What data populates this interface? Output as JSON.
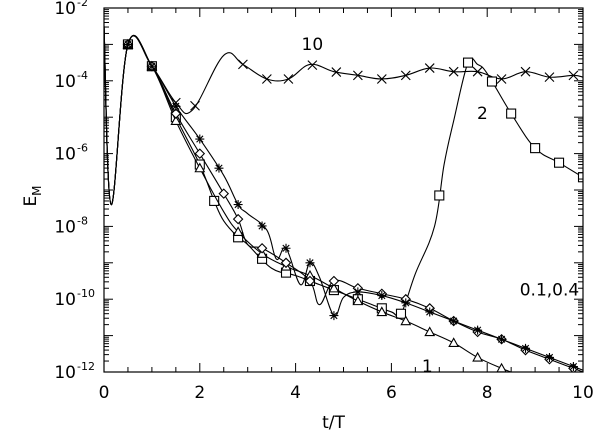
{
  "chart_data": {
    "type": "line",
    "title": "",
    "xlabel": "t/T",
    "ylabel": "E",
    "ylabel_subscript": "M",
    "xlim": [
      0,
      10
    ],
    "ylim_log10": [
      -12,
      -2
    ],
    "yscale": "log",
    "x_ticks": [
      0,
      2,
      4,
      6,
      8,
      10
    ],
    "y_ticks": [
      {
        "base": "10",
        "exp": "-12",
        "log": -12
      },
      {
        "base": "10",
        "exp": "-10",
        "log": -10
      },
      {
        "base": "10",
        "exp": "-8",
        "log": -8
      },
      {
        "base": "10",
        "exp": "-6",
        "log": -6
      },
      {
        "base": "10",
        "exp": "-4",
        "log": -4
      },
      {
        "base": "10",
        "exp": "-2",
        "log": -2
      }
    ],
    "annotations": [
      {
        "text": "10",
        "x": 4.35,
        "log_y": -3.15
      },
      {
        "text": "2",
        "x": 7.9,
        "log_y": -5.05
      },
      {
        "text": "0.1,0.4",
        "x": 9.3,
        "log_y": -9.9
      },
      {
        "text": "1",
        "x": 6.75,
        "log_y": -12.0
      }
    ],
    "series": [
      {
        "marker": "cross",
        "log_y": [
          [
            0,
            -2.5
          ],
          [
            0.15,
            -7.4
          ],
          [
            0.5,
            -3.0
          ],
          [
            1.0,
            -3.6
          ],
          [
            1.5,
            -4.6
          ],
          [
            1.85,
            -4.8
          ],
          [
            2.5,
            -3.3
          ],
          [
            2.9,
            -3.55
          ],
          [
            3.4,
            -3.95
          ],
          [
            3.85,
            -3.95
          ],
          [
            4.3,
            -3.55
          ],
          [
            4.8,
            -3.75
          ],
          [
            5.3,
            -3.85
          ],
          [
            5.8,
            -3.95
          ],
          [
            6.3,
            -3.85
          ],
          [
            6.8,
            -3.65
          ],
          [
            7.3,
            -3.75
          ],
          [
            7.8,
            -3.75
          ],
          [
            8.3,
            -3.95
          ],
          [
            8.8,
            -3.75
          ],
          [
            9.3,
            -3.9
          ],
          [
            9.8,
            -3.85
          ],
          [
            10.0,
            -3.9
          ]
        ],
        "markers_x": [
          0.5,
          1.0,
          1.5,
          1.9,
          2.9,
          3.4,
          3.85,
          4.35,
          4.85,
          5.3,
          5.8,
          6.3,
          6.8,
          7.3,
          7.8,
          8.3,
          8.8,
          9.3,
          9.8
        ]
      },
      {
        "marker": "square",
        "log_y": [
          [
            0,
            -2.5
          ],
          [
            0.15,
            -7.4
          ],
          [
            0.5,
            -3.0
          ],
          [
            1.0,
            -3.6
          ],
          [
            1.5,
            -5.0
          ],
          [
            2.0,
            -6.3
          ],
          [
            2.3,
            -7.3
          ],
          [
            2.5,
            -7.85
          ],
          [
            2.8,
            -8.3
          ],
          [
            3.0,
            -8.5
          ],
          [
            3.5,
            -9.15
          ],
          [
            4.0,
            -9.35
          ],
          [
            4.5,
            -9.6
          ],
          [
            5.0,
            -9.85
          ],
          [
            5.5,
            -10.1
          ],
          [
            6.0,
            -10.35
          ],
          [
            6.2,
            -10.4
          ],
          [
            6.5,
            -9.3
          ],
          [
            6.9,
            -8.0
          ],
          [
            7.1,
            -6.3
          ],
          [
            7.3,
            -5.1
          ],
          [
            7.6,
            -3.5
          ],
          [
            7.8,
            -3.55
          ],
          [
            8.0,
            -3.8
          ],
          [
            8.5,
            -4.9
          ],
          [
            9.0,
            -5.85
          ],
          [
            9.5,
            -6.25
          ],
          [
            10.0,
            -6.65
          ]
        ],
        "markers_x": [
          0.5,
          1.0,
          1.5,
          2.0,
          2.3,
          2.8,
          3.3,
          3.8,
          4.3,
          4.8,
          5.3,
          5.8,
          6.2,
          7.0,
          7.6,
          8.1,
          8.5,
          9.0,
          9.5,
          10.0
        ]
      },
      {
        "marker": "triangle",
        "log_y": [
          [
            0,
            -2.5
          ],
          [
            0.15,
            -7.4
          ],
          [
            0.5,
            -3.0
          ],
          [
            1.0,
            -3.6
          ],
          [
            1.5,
            -5.1
          ],
          [
            2.0,
            -6.4
          ],
          [
            2.5,
            -7.6
          ],
          [
            2.8,
            -8.15
          ],
          [
            3.3,
            -8.75
          ],
          [
            3.8,
            -9.1
          ],
          [
            4.3,
            -9.35
          ],
          [
            4.8,
            -9.7
          ],
          [
            5.3,
            -10.05
          ],
          [
            5.8,
            -10.35
          ],
          [
            6.3,
            -10.6
          ],
          [
            6.8,
            -10.9
          ],
          [
            7.3,
            -11.2
          ],
          [
            7.8,
            -11.6
          ],
          [
            8.3,
            -11.9
          ],
          [
            8.5,
            -12.0
          ]
        ],
        "markers_x": [
          0.5,
          1.0,
          1.5,
          2.0,
          2.8,
          3.3,
          3.8,
          4.3,
          4.8,
          5.3,
          5.8,
          6.3,
          6.8,
          7.3,
          7.8,
          8.3
        ]
      },
      {
        "marker": "diamond",
        "log_y": [
          [
            0,
            -2.5
          ],
          [
            0.15,
            -7.4
          ],
          [
            0.5,
            -3.0
          ],
          [
            1.0,
            -3.6
          ],
          [
            1.5,
            -4.9
          ],
          [
            2.0,
            -6.0
          ],
          [
            2.5,
            -7.1
          ],
          [
            2.8,
            -7.8
          ],
          [
            3.0,
            -8.5
          ],
          [
            3.3,
            -8.6
          ],
          [
            3.8,
            -9.0
          ],
          [
            4.3,
            -9.5
          ],
          [
            4.5,
            -10.15
          ],
          [
            4.8,
            -9.5
          ],
          [
            5.3,
            -9.7
          ],
          [
            5.8,
            -9.85
          ],
          [
            6.3,
            -10.0
          ],
          [
            6.8,
            -10.25
          ],
          [
            7.3,
            -10.6
          ],
          [
            7.8,
            -10.9
          ],
          [
            8.3,
            -11.1
          ],
          [
            8.8,
            -11.4
          ],
          [
            9.3,
            -11.65
          ],
          [
            9.8,
            -11.9
          ],
          [
            10.0,
            -12.0
          ]
        ],
        "markers_x": [
          0.5,
          1.0,
          1.5,
          2.0,
          2.5,
          2.8,
          3.3,
          3.8,
          4.3,
          4.8,
          5.3,
          5.8,
          6.3,
          6.8,
          7.3,
          7.8,
          8.3,
          8.8,
          9.3,
          9.8
        ]
      },
      {
        "marker": "asterisk",
        "log_y": [
          [
            0,
            -2.5
          ],
          [
            0.15,
            -7.4
          ],
          [
            0.5,
            -3.0
          ],
          [
            1.0,
            -3.6
          ],
          [
            1.5,
            -4.7
          ],
          [
            2.0,
            -5.6
          ],
          [
            2.5,
            -6.6
          ],
          [
            2.8,
            -7.4
          ],
          [
            3.0,
            -7.65
          ],
          [
            3.4,
            -8.1
          ],
          [
            3.6,
            -8.9
          ],
          [
            3.8,
            -8.6
          ],
          [
            4.1,
            -9.6
          ],
          [
            4.3,
            -9.0
          ],
          [
            4.5,
            -9.4
          ],
          [
            4.8,
            -10.45
          ],
          [
            5.0,
            -9.95
          ],
          [
            5.3,
            -9.8
          ],
          [
            5.8,
            -9.9
          ],
          [
            6.3,
            -10.1
          ],
          [
            6.8,
            -10.35
          ],
          [
            7.3,
            -10.6
          ],
          [
            7.8,
            -10.85
          ],
          [
            8.3,
            -11.1
          ],
          [
            8.8,
            -11.35
          ],
          [
            9.3,
            -11.6
          ],
          [
            9.8,
            -11.85
          ],
          [
            10.0,
            -11.95
          ]
        ],
        "markers_x": [
          0.5,
          1.0,
          1.5,
          2.0,
          2.4,
          2.8,
          3.3,
          3.8,
          4.3,
          4.8,
          5.3,
          5.8,
          6.3,
          6.8,
          7.3,
          7.8,
          8.3,
          8.8,
          9.3,
          9.8
        ]
      }
    ]
  }
}
